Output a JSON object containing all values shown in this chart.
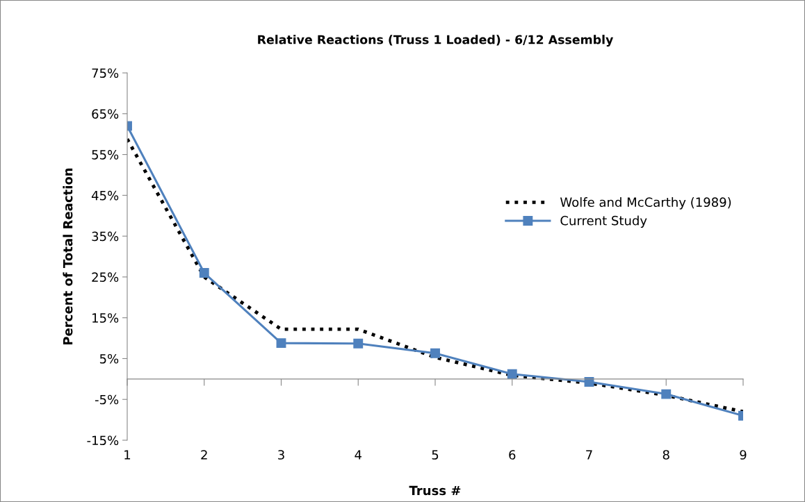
{
  "chart_data": {
    "type": "line",
    "title": "Relative Reactions (Truss 1 Loaded) - 6/12 Assembly",
    "xlabel": "Truss #",
    "ylabel": "Percent of Total Reaction",
    "categories": [
      "1",
      "2",
      "3",
      "4",
      "5",
      "6",
      "7",
      "8",
      "9"
    ],
    "series": [
      {
        "name": "Wolfe and McCarthy (1989)",
        "color": "#000000",
        "values": [
          58.8,
          25,
          12.2,
          12.2,
          5.3,
          0.9,
          -1,
          -4,
          -8
        ],
        "marker": "none",
        "line_style": "dotted"
      },
      {
        "name": "Current Study",
        "color": "#4f81bd",
        "values": [
          62,
          26,
          8.8,
          8.7,
          6.3,
          1.2,
          -0.7,
          -3.7,
          -9
        ],
        "marker": "square",
        "line_style": "solid"
      }
    ],
    "ylim": [
      -15,
      75
    ],
    "yticks": [
      {
        "value": -15,
        "label": "-15%"
      },
      {
        "value": -5,
        "label": "-5%"
      },
      {
        "value": 5,
        "label": "5%"
      },
      {
        "value": 15,
        "label": "15%"
      },
      {
        "value": 25,
        "label": "25%"
      },
      {
        "value": 35,
        "label": "35%"
      },
      {
        "value": 45,
        "label": "45%"
      },
      {
        "value": 55,
        "label": "55%"
      },
      {
        "value": 65,
        "label": "65%"
      },
      {
        "value": 75,
        "label": "75%"
      }
    ],
    "grid": false,
    "legend": "right"
  }
}
